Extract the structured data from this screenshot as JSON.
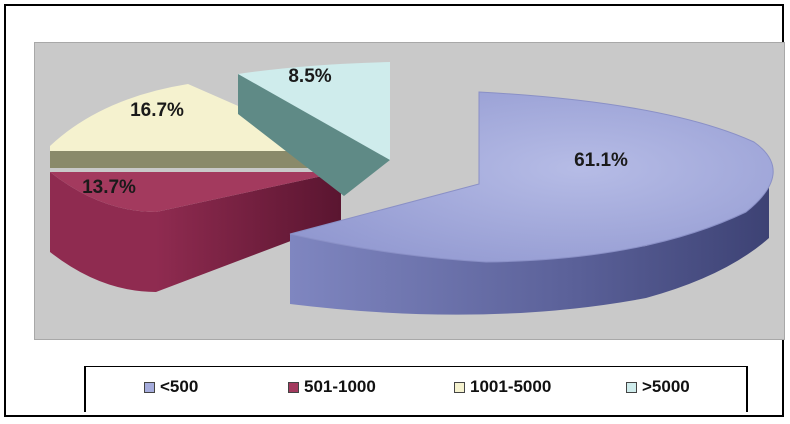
{
  "chart_data": {
    "type": "pie",
    "categories": [
      "<500",
      "501-1000",
      "1001-5000",
      ">5000"
    ],
    "values": [
      61.1,
      13.7,
      16.7,
      8.5
    ],
    "data_labels": [
      "61.1%",
      "13.7%",
      "16.7%",
      "8.5%"
    ],
    "exploded": "<500",
    "style": "3d",
    "legend_position": "bottom",
    "colors": {
      "<500": "#a5acdc",
      "501-1000": "#a33a5e",
      "1001-5000": "#f5f2cf",
      ">5000": "#cfecec"
    },
    "side_colors": {
      "<500": "#5a6098",
      "501-1000": "#6e1f3c",
      "1001-5000": "#8a8a6a",
      ">5000": "#5f8a86"
    }
  }
}
